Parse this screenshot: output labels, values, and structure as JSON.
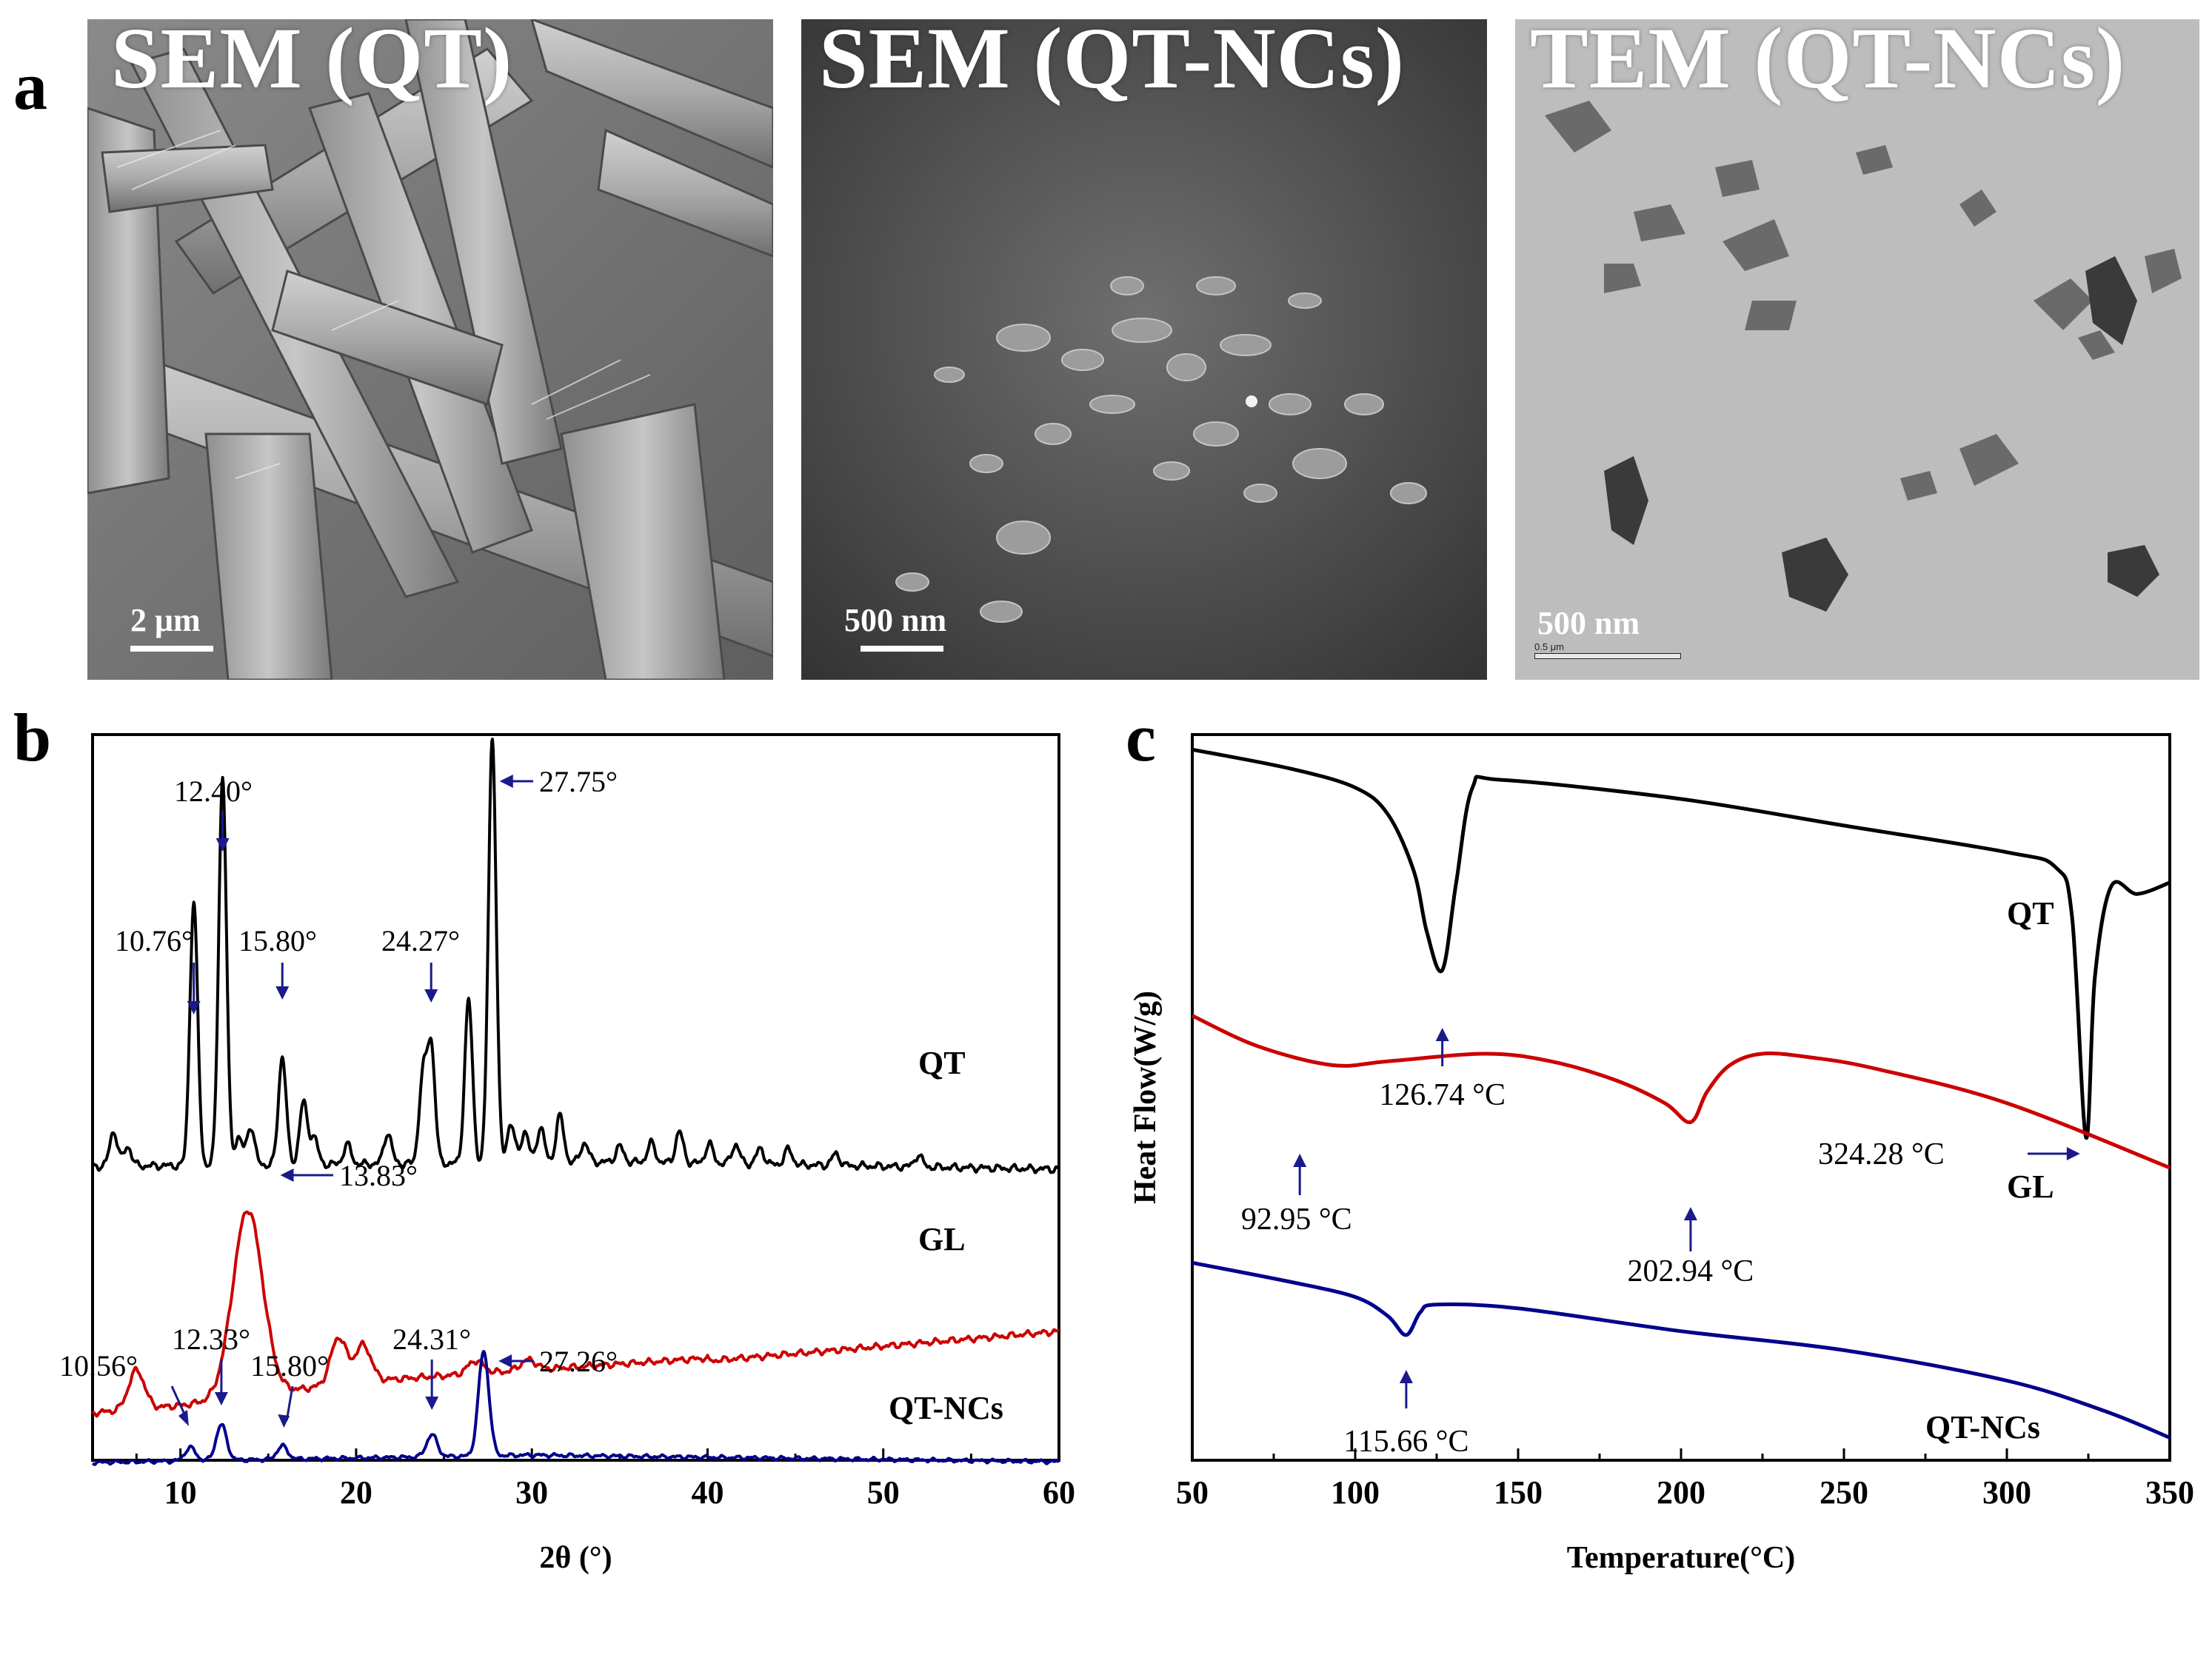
{
  "panel_a": {
    "letter": "a",
    "images": [
      {
        "title": "SEM (QT)",
        "scale": "2 μm"
      },
      {
        "title": "SEM (QT-NCs)",
        "scale": "500 nm"
      },
      {
        "title": "TEM (QT-NCs)",
        "scale": "500 nm",
        "micro_label": "0.5 μm"
      }
    ]
  },
  "chart_data": [
    {
      "panel": "b",
      "type": "line",
      "xlabel": "2θ (°)",
      "xlim": [
        5,
        60
      ],
      "xticks": [
        10,
        20,
        30,
        40,
        50,
        60
      ],
      "series": [
        {
          "name": "QT",
          "color": "#000000",
          "baseline": 0.0,
          "x": [
            5,
            10,
            20,
            30,
            40,
            50,
            60
          ],
          "peaks": [
            [
              6.2,
              0.09
            ],
            [
              7.0,
              0.05
            ],
            [
              10.76,
              0.68
            ],
            [
              12.4,
              1.0
            ],
            [
              13.3,
              0.07
            ],
            [
              14.0,
              0.1
            ],
            [
              15.8,
              0.28
            ],
            [
              17.0,
              0.16
            ],
            [
              17.6,
              0.07
            ],
            [
              19.5,
              0.05
            ],
            [
              21.8,
              0.08
            ],
            [
              23.8,
              0.22
            ],
            [
              24.27,
              0.3
            ],
            [
              26.4,
              0.42
            ],
            [
              27.75,
              1.1
            ],
            [
              28.8,
              0.1
            ],
            [
              29.6,
              0.08
            ],
            [
              30.5,
              0.09
            ],
            [
              31.6,
              0.12
            ],
            [
              33.0,
              0.05
            ],
            [
              35.0,
              0.04
            ],
            [
              36.8,
              0.05
            ],
            [
              38.4,
              0.08
            ],
            [
              40.1,
              0.05
            ],
            [
              41.6,
              0.05
            ],
            [
              43.0,
              0.04
            ],
            [
              44.6,
              0.04
            ],
            [
              47.3,
              0.03
            ],
            [
              52.0,
              0.03
            ]
          ],
          "annotations": [
            "10.76°",
            "12.40°",
            "15.80°",
            "24.27°",
            "27.75°"
          ]
        },
        {
          "name": "GL",
          "color": "#cc0000",
          "peaks": [
            [
              7.5,
              0.15
            ],
            [
              13.83,
              0.72
            ],
            [
              19.0,
              0.18
            ],
            [
              20.4,
              0.14
            ],
            [
              26.8,
              0.05
            ],
            [
              29.8,
              0.04
            ]
          ],
          "annotations": [
            "13.83°"
          ]
        },
        {
          "name": "QT-NCs",
          "color": "#00008b",
          "peaks": [
            [
              10.56,
              0.06
            ],
            [
              12.33,
              0.16
            ],
            [
              15.8,
              0.06
            ],
            [
              24.31,
              0.1
            ],
            [
              27.26,
              0.47
            ]
          ],
          "annotations": [
            "10.56°",
            "12.33°",
            "15.80°",
            "24.31°",
            "27.26°"
          ]
        }
      ]
    },
    {
      "panel": "c",
      "type": "line",
      "xlabel": "Temperature(°C)",
      "ylabel": "Heat Flow(W/g)",
      "xlim": [
        50,
        350
      ],
      "xticks": [
        50,
        100,
        150,
        200,
        250,
        300,
        350
      ],
      "series": [
        {
          "name": "QT",
          "color": "#000000",
          "x": [
            50,
            80,
            100,
            110,
            118,
            122,
            126.74,
            131,
            136,
            145,
            200,
            250,
            300,
            315,
            320,
            324.28,
            327,
            332,
            340,
            350
          ],
          "y": [
            0.0,
            -0.05,
            -0.1,
            -0.17,
            -0.32,
            -0.48,
            -0.58,
            -0.35,
            -0.1,
            -0.08,
            -0.13,
            -0.2,
            -0.27,
            -0.31,
            -0.44,
            -1.02,
            -0.6,
            -0.36,
            -0.38,
            -0.35
          ],
          "annotations": [
            "126.74 °C",
            "324.28 °C"
          ]
        },
        {
          "name": "GL",
          "color": "#cc0000",
          "x": [
            50,
            70,
            92.95,
            110,
            140,
            160,
            180,
            195,
            202.94,
            208,
            215,
            225,
            240,
            260,
            300,
            350
          ],
          "y": [
            -0.7,
            -0.78,
            -0.83,
            -0.82,
            -0.8,
            -0.82,
            -0.87,
            -0.93,
            -0.98,
            -0.9,
            -0.83,
            -0.8,
            -0.81,
            -0.84,
            -0.93,
            -1.1
          ],
          "annotations": [
            "92.95 °C",
            "202.94 °C"
          ]
        },
        {
          "name": "QT-NCs",
          "color": "#00008b",
          "x": [
            50,
            80,
            100,
            110,
            115.66,
            120,
            125,
            150,
            200,
            250,
            300,
            330,
            350
          ],
          "y": [
            -1.35,
            -1.4,
            -1.44,
            -1.49,
            -1.54,
            -1.48,
            -1.46,
            -1.47,
            -1.53,
            -1.58,
            -1.66,
            -1.74,
            -1.81
          ],
          "annotations": [
            "115.66 °C"
          ]
        }
      ]
    }
  ],
  "labels": {
    "panel_b": "b",
    "panel_c": "c"
  }
}
